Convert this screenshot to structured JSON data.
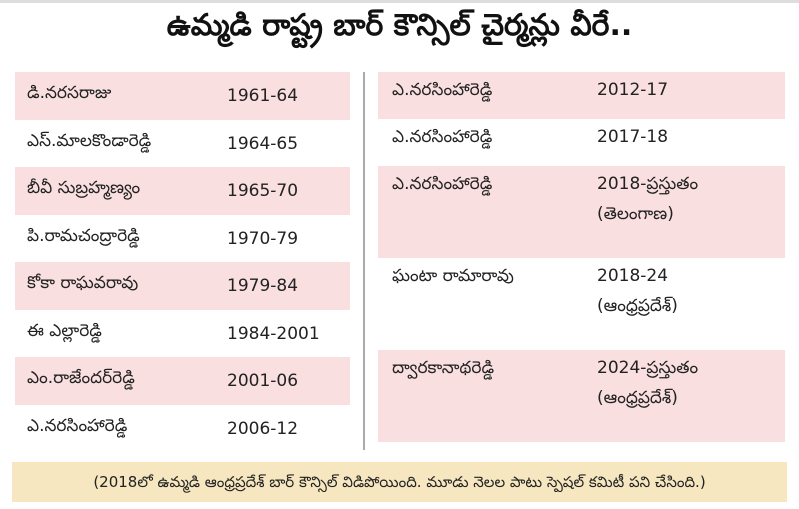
{
  "title": "ఉమ్మడి రాష్ట్ర బార్ కౌన్సిల్ చైర్మన్లు వీరే..",
  "left": [
    {
      "name": "డి.నరసరాజు",
      "years": "1961-64",
      "sub": ""
    },
    {
      "name": "ఎస్.మాలకొండారెడ్డి",
      "years": "1964-65",
      "sub": ""
    },
    {
      "name": "బీవీ సుబ్రహ్మణ్యం",
      "years": "1965-70",
      "sub": ""
    },
    {
      "name": "పి.రామచంద్రారెడ్డి",
      "years": "1970-79",
      "sub": ""
    },
    {
      "name": "కోకా రాఘవరావు",
      "years": "1979-84",
      "sub": ""
    },
    {
      "name": "ఈ ఎల్లారెడ్డి",
      "years": "1984-2001",
      "sub": ""
    },
    {
      "name": "ఎం.రాజేందర్‌రెడ్డి",
      "years": "2001-06",
      "sub": ""
    },
    {
      "name": "ఎ.నరసింహారెడ్డి",
      "years": "2006-12",
      "sub": ""
    }
  ],
  "right": [
    {
      "name": "ఎ.నరసింహారెడ్డి",
      "years": "2012-17",
      "sub": ""
    },
    {
      "name": "ఎ.నరసింహారెడ్డి",
      "years": "2017-18",
      "sub": ""
    },
    {
      "name": "ఎ.నరసింహారెడ్డి",
      "years": "2018-ప్రస్తుతం",
      "sub": "(తెలంగాణ)"
    },
    {
      "name": "ఘంటా రామారావు",
      "years": "2018-24",
      "sub": "(ఆంధ్రప్రదేశ్)"
    },
    {
      "name": "ద్వారకానాథరెడ్డి",
      "years": "2024-ప్రస్తుతం",
      "sub": "(ఆంధ్రప్రదేశ్)"
    }
  ],
  "footer": "(2018లో ఉమ్మడి ఆంధ్రప్రదేశ్ బార్ కౌన్సిల్ విడిపోయింది. మూడు నెలల పాటు స్పెషల్ కమిటీ పని చేసింది.)",
  "colors": {
    "pink": "#f9dfe0",
    "footer": "#f6e7c0"
  }
}
